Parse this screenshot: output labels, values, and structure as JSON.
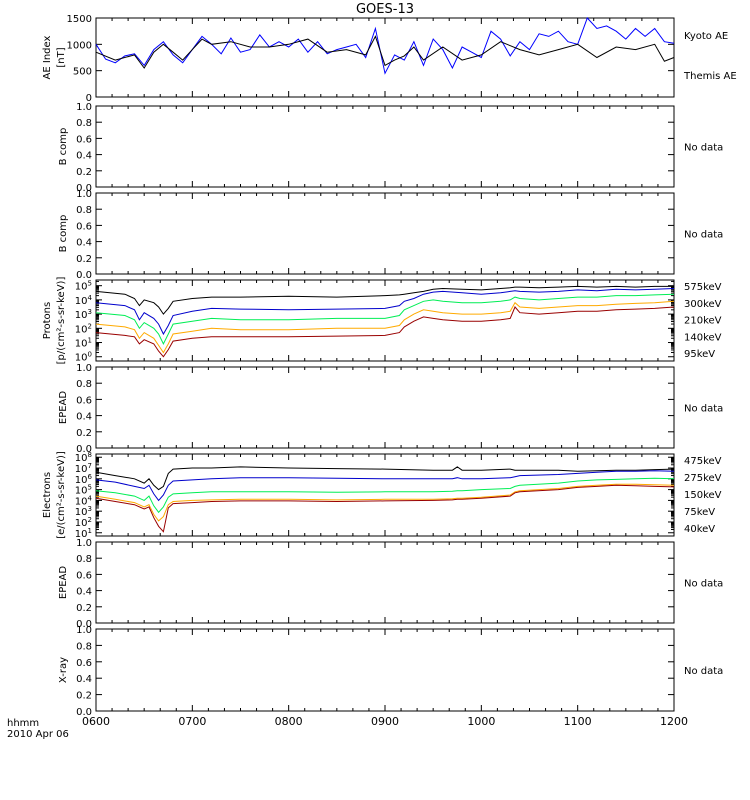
{
  "figure": {
    "title": "GOES-13",
    "time_label_1": "hhmm",
    "time_label_2": "2010 Apr 06",
    "x_ticks": [
      "0600",
      "0700",
      "0800",
      "0900",
      "1000",
      "1100",
      "1200"
    ],
    "x_range_hours": [
      6,
      12
    ]
  },
  "colors": {
    "black": "#000000",
    "blue": "#0000cc",
    "kyoto": "#0000ff",
    "green": "#00ee55",
    "orange": "#ffaa00",
    "darkred": "#990000"
  },
  "chart_data": [
    {
      "type": "line",
      "panel": "ae",
      "ylabel_1": "AE Index",
      "ylabel_2": "[nT]",
      "ylim": [
        0,
        1500
      ],
      "yticks": [
        "0",
        "500",
        "1000",
        "1500"
      ],
      "x_unit": "hours UT",
      "series": [
        {
          "name": "Kyoto AE",
          "color": "kyoto",
          "x": [
            6.0,
            6.1,
            6.2,
            6.3,
            6.4,
            6.5,
            6.6,
            6.7,
            6.8,
            6.9,
            7.0,
            7.1,
            7.2,
            7.3,
            7.4,
            7.5,
            7.6,
            7.7,
            7.8,
            7.9,
            8.0,
            8.1,
            8.2,
            8.3,
            8.4,
            8.5,
            8.6,
            8.7,
            8.8,
            8.9,
            9.0,
            9.1,
            9.2,
            9.3,
            9.4,
            9.5,
            9.6,
            9.7,
            9.8,
            9.9,
            10.0,
            10.1,
            10.2,
            10.3,
            10.4,
            10.5,
            10.6,
            10.7,
            10.8,
            10.9,
            11.0,
            11.1,
            11.2,
            11.3,
            11.4,
            11.5,
            11.6,
            11.7,
            11.8,
            11.9,
            12.0
          ],
          "y": [
            1000,
            720,
            650,
            780,
            820,
            600,
            900,
            1050,
            800,
            650,
            900,
            1150,
            1000,
            820,
            1120,
            850,
            900,
            1180,
            950,
            1050,
            950,
            1100,
            850,
            1050,
            820,
            900,
            950,
            1000,
            750,
            1300,
            450,
            800,
            700,
            1050,
            600,
            1100,
            900,
            550,
            950,
            850,
            750,
            1250,
            1100,
            780,
            1050,
            900,
            1200,
            1150,
            1250,
            1050,
            1000,
            1500,
            1300,
            1350,
            1250,
            1100,
            1300,
            1150,
            1300,
            1050,
            1020
          ]
        },
        {
          "name": "Themis AE",
          "color": "black",
          "x": [
            6.0,
            6.2,
            6.4,
            6.5,
            6.6,
            6.7,
            6.8,
            6.9,
            7.0,
            7.1,
            7.2,
            7.4,
            7.6,
            7.8,
            8.0,
            8.2,
            8.4,
            8.6,
            8.8,
            8.9,
            9.0,
            9.1,
            9.2,
            9.3,
            9.4,
            9.6,
            9.8,
            10.0,
            10.2,
            10.4,
            10.6,
            10.8,
            11.0,
            11.2,
            11.4,
            11.6,
            11.8,
            11.9,
            12.0
          ],
          "y": [
            850,
            700,
            800,
            550,
            850,
            1000,
            850,
            700,
            900,
            1100,
            1000,
            1050,
            950,
            950,
            1000,
            1100,
            850,
            900,
            800,
            1150,
            600,
            700,
            780,
            950,
            700,
            950,
            700,
            800,
            1050,
            900,
            800,
            900,
            1000,
            750,
            950,
            900,
            1000,
            680,
            750
          ]
        }
      ],
      "legend": [
        "Kyoto AE",
        "Themis AE"
      ]
    },
    {
      "type": "line",
      "panel": "b1",
      "ylabel": "B comp",
      "yticks": [
        "0.0",
        "0.2",
        "0.4",
        "0.6",
        "0.8",
        "1.0"
      ],
      "ylim": [
        0,
        1
      ],
      "series": [],
      "status": "No data"
    },
    {
      "type": "line",
      "panel": "b2",
      "ylabel": "B comp",
      "yticks": [
        "0.0",
        "0.2",
        "0.4",
        "0.6",
        "0.8",
        "1.0"
      ],
      "ylim": [
        0,
        1
      ],
      "series": [],
      "status": "No data"
    },
    {
      "type": "line",
      "panel": "protons",
      "ylabel_1": "Protons",
      "ylabel_2": "[p/(cm²-s-sr-keV)]",
      "yscale": "log",
      "ylim_exp": [
        -0.3,
        5.4
      ],
      "ytick_exps": [
        0,
        1,
        2,
        3,
        4,
        5
      ],
      "x": [
        6.0,
        6.3,
        6.4,
        6.45,
        6.5,
        6.6,
        6.65,
        6.7,
        6.75,
        6.8,
        7.0,
        7.2,
        7.5,
        8.0,
        8.5,
        9.0,
        9.15,
        9.2,
        9.3,
        9.4,
        9.5,
        9.6,
        9.8,
        10.0,
        10.2,
        10.3,
        10.35,
        10.4,
        10.6,
        10.8,
        11.0,
        11.2,
        11.4,
        11.6,
        11.8,
        12.0
      ],
      "series": [
        {
          "name": "95keV",
          "color": "black",
          "y_log10": [
            4.6,
            4.4,
            4.1,
            3.6,
            4.0,
            3.8,
            3.5,
            3.0,
            3.4,
            3.9,
            4.1,
            4.2,
            4.2,
            4.25,
            4.2,
            4.3,
            4.35,
            4.4,
            4.5,
            4.6,
            4.75,
            4.8,
            4.75,
            4.7,
            4.8,
            4.85,
            4.9,
            4.9,
            4.85,
            4.9,
            4.95,
            4.9,
            4.95,
            4.9,
            4.95,
            4.95
          ]
        },
        {
          "name": "140keV",
          "color": "blue",
          "y_log10": [
            3.8,
            3.6,
            3.3,
            2.6,
            3.1,
            2.7,
            2.3,
            1.6,
            2.2,
            2.9,
            3.2,
            3.4,
            3.35,
            3.3,
            3.35,
            3.4,
            3.6,
            3.9,
            4.1,
            4.4,
            4.55,
            4.6,
            4.5,
            4.4,
            4.5,
            4.6,
            4.65,
            4.6,
            4.55,
            4.6,
            4.7,
            4.65,
            4.75,
            4.7,
            4.75,
            4.8
          ]
        },
        {
          "name": "210keV",
          "color": "green",
          "y_log10": [
            3.1,
            2.9,
            2.6,
            2.0,
            2.4,
            2.0,
            1.6,
            0.9,
            1.6,
            2.3,
            2.5,
            2.7,
            2.6,
            2.6,
            2.7,
            2.7,
            2.9,
            3.3,
            3.6,
            3.9,
            4.0,
            3.9,
            3.8,
            3.8,
            3.9,
            4.0,
            4.2,
            4.1,
            4.0,
            4.1,
            4.2,
            4.2,
            4.3,
            4.3,
            4.35,
            4.4
          ]
        },
        {
          "name": "300keV",
          "color": "orange",
          "y_log10": [
            2.3,
            2.1,
            1.9,
            1.3,
            1.7,
            1.3,
            0.8,
            0.3,
            0.9,
            1.6,
            1.8,
            2.0,
            1.9,
            1.9,
            2.0,
            2.0,
            2.2,
            2.6,
            3.0,
            3.3,
            3.2,
            3.1,
            3.0,
            3.0,
            3.1,
            3.2,
            3.8,
            3.5,
            3.4,
            3.5,
            3.6,
            3.6,
            3.7,
            3.75,
            3.8,
            3.9
          ]
        },
        {
          "name": "575keV",
          "color": "darkred",
          "y_log10": [
            1.7,
            1.5,
            1.4,
            0.9,
            1.2,
            0.9,
            0.4,
            0.0,
            0.5,
            1.1,
            1.3,
            1.4,
            1.4,
            1.4,
            1.45,
            1.5,
            1.7,
            2.1,
            2.5,
            2.8,
            2.7,
            2.6,
            2.5,
            2.5,
            2.6,
            2.7,
            3.5,
            3.1,
            3.0,
            3.1,
            3.2,
            3.2,
            3.3,
            3.35,
            3.4,
            3.5
          ]
        }
      ],
      "legend": [
        "575keV",
        "300keV",
        "210keV",
        "140keV",
        "95keV"
      ]
    },
    {
      "type": "line",
      "panel": "epead1",
      "ylabel": "EPEAD",
      "yticks": [
        "0.0",
        "0.2",
        "0.4",
        "0.6",
        "0.8",
        "1.0"
      ],
      "ylim": [
        0,
        1
      ],
      "series": [],
      "status": "No data"
    },
    {
      "type": "line",
      "panel": "electrons",
      "ylabel_1": "Electrons",
      "ylabel_2": "[e/(cm²-s-sr-keV)]",
      "yscale": "log",
      "ylim_exp": [
        0.7,
        8.3
      ],
      "ytick_exps": [
        1,
        2,
        3,
        4,
        5,
        6,
        7,
        8
      ],
      "x": [
        6.0,
        6.2,
        6.4,
        6.5,
        6.55,
        6.6,
        6.65,
        6.7,
        6.75,
        6.8,
        7.0,
        7.2,
        7.5,
        8.0,
        8.5,
        9.0,
        9.5,
        9.7,
        9.75,
        9.8,
        10.0,
        10.3,
        10.35,
        10.4,
        10.8,
        11.0,
        11.2,
        11.4,
        11.6,
        11.8,
        12.0
      ],
      "series": [
        {
          "name": "40keV",
          "color": "black",
          "y_log10": [
            6.6,
            6.3,
            6.0,
            5.6,
            6.0,
            5.4,
            5.0,
            5.3,
            6.5,
            6.9,
            7.0,
            7.0,
            7.1,
            7.0,
            6.95,
            6.9,
            6.8,
            6.8,
            7.1,
            6.8,
            6.8,
            6.9,
            6.8,
            6.8,
            6.8,
            6.7,
            6.75,
            6.8,
            6.8,
            6.85,
            6.9
          ]
        },
        {
          "name": "75keV",
          "color": "blue",
          "y_log10": [
            5.9,
            5.7,
            5.3,
            5.1,
            5.4,
            4.6,
            4.0,
            4.5,
            5.4,
            5.8,
            5.9,
            6.0,
            6.1,
            6.1,
            6.05,
            6.0,
            6.0,
            6.0,
            6.1,
            6.0,
            6.0,
            6.1,
            6.2,
            6.3,
            6.4,
            6.5,
            6.6,
            6.7,
            6.7,
            6.75,
            6.7
          ]
        },
        {
          "name": "150keV",
          "color": "green",
          "y_log10": [
            4.9,
            4.7,
            4.4,
            4.0,
            4.4,
            3.5,
            2.9,
            3.4,
            4.3,
            4.6,
            4.7,
            4.8,
            4.8,
            4.8,
            4.75,
            4.8,
            4.8,
            4.85,
            4.9,
            4.9,
            5.0,
            5.1,
            5.3,
            5.4,
            5.6,
            5.8,
            5.9,
            5.95,
            6.0,
            6.05,
            6.0
          ]
        },
        {
          "name": "275keV",
          "color": "orange",
          "y_log10": [
            4.4,
            4.1,
            3.8,
            3.4,
            3.6,
            2.7,
            2.1,
            2.5,
            3.6,
            3.9,
            4.0,
            4.05,
            4.1,
            4.1,
            4.05,
            4.1,
            4.1,
            4.15,
            4.2,
            4.2,
            4.3,
            4.5,
            4.8,
            4.9,
            5.1,
            5.3,
            5.4,
            5.5,
            5.5,
            5.45,
            5.4
          ]
        },
        {
          "name": "475keV",
          "color": "darkred",
          "y_log10": [
            4.2,
            3.9,
            3.6,
            3.2,
            3.4,
            2.4,
            1.6,
            1.1,
            3.3,
            3.7,
            3.8,
            3.9,
            3.95,
            3.95,
            3.9,
            3.95,
            4.0,
            4.05,
            4.1,
            4.1,
            4.2,
            4.4,
            4.7,
            4.8,
            5.0,
            5.2,
            5.3,
            5.4,
            5.35,
            5.3,
            5.25
          ]
        }
      ],
      "legend": [
        "475keV",
        "275keV",
        "150keV",
        "75keV",
        "40keV"
      ]
    },
    {
      "type": "line",
      "panel": "epead2",
      "ylabel": "EPEAD",
      "yticks": [
        "0.0",
        "0.2",
        "0.4",
        "0.6",
        "0.8",
        "1.0"
      ],
      "ylim": [
        0,
        1
      ],
      "series": [],
      "status": "No data"
    },
    {
      "type": "line",
      "panel": "xray",
      "ylabel": "X-ray",
      "yticks": [
        "0.0",
        "0.2",
        "0.4",
        "0.6",
        "0.8",
        "1.0"
      ],
      "ylim": [
        0,
        1
      ],
      "series": [],
      "status": "No data"
    }
  ]
}
